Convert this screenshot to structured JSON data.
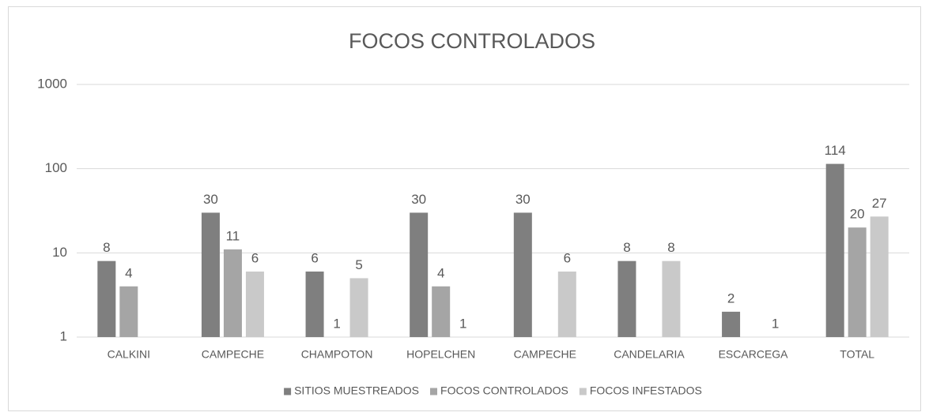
{
  "chart_data": {
    "type": "bar",
    "title": "FOCOS CONTROLADOS",
    "categories": [
      "CALKINI",
      "CAMPECHE",
      "CHAMPOTON",
      "HOPELCHEN",
      "CAMPECHE",
      "CANDELARIA",
      "ESCARCEGA",
      "TOTAL"
    ],
    "series": [
      {
        "name": "SITIOS MUESTREADOS",
        "color": "#7f7f7f",
        "values": [
          8,
          30,
          6,
          30,
          30,
          8,
          2,
          114
        ]
      },
      {
        "name": "FOCOS CONTROLADOS",
        "color": "#a5a5a5",
        "values": [
          4,
          11,
          1,
          4,
          null,
          null,
          null,
          20
        ]
      },
      {
        "name": "FOCOS INFESTADOS",
        "color": "#c9c9c9",
        "values": [
          null,
          6,
          5,
          1,
          6,
          8,
          1,
          27
        ]
      }
    ],
    "ylim": [
      1,
      1000
    ],
    "yticks": [
      1,
      10,
      100,
      1000
    ],
    "log": true,
    "grid": true,
    "legend": "bottom"
  }
}
